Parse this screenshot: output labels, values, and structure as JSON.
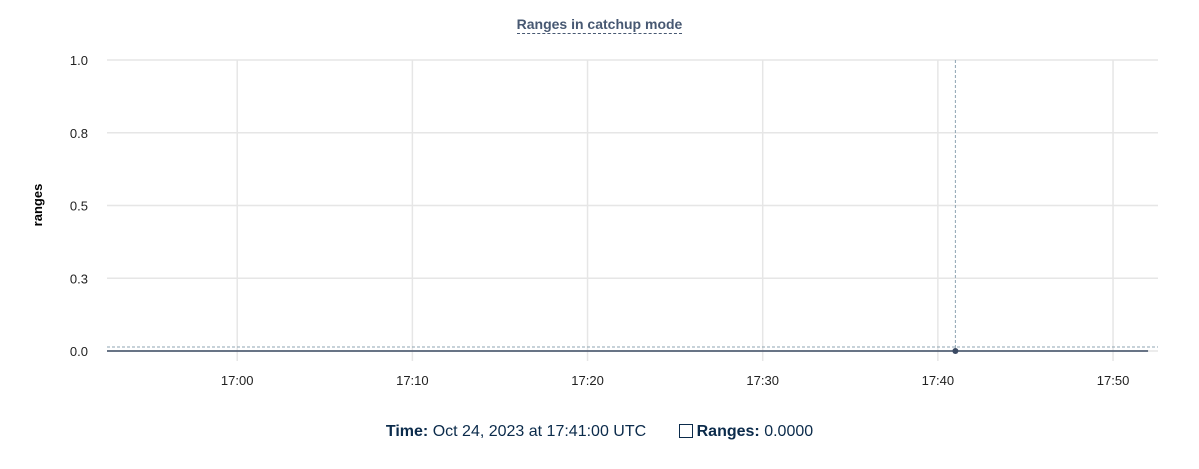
{
  "chart_data": {
    "type": "line",
    "title": "Ranges in catchup mode",
    "ylabel": "ranges",
    "xlabel": "",
    "ylim": [
      0,
      1.0
    ],
    "yticks": [
      "0.0",
      "0.3",
      "0.5",
      "0.8",
      "1.0"
    ],
    "ytick_values": [
      0,
      0.25,
      0.5,
      0.75,
      1.0
    ],
    "xticks": [
      "17:00",
      "17:10",
      "17:20",
      "17:30",
      "17:40",
      "17:50"
    ],
    "xlim": [
      "16:52:34",
      "17:52:34"
    ],
    "grid": true,
    "series": [
      {
        "name": "Ranges",
        "color": "#3b4a63",
        "x": [
          "16:52:34",
          "17:00",
          "17:10",
          "17:20",
          "17:30",
          "17:40",
          "17:41",
          "17:50",
          "17:52"
        ],
        "y": [
          0,
          0,
          0,
          0,
          0,
          0,
          0,
          0,
          0
        ]
      }
    ],
    "hover": {
      "x": "17:41",
      "y": 0
    }
  },
  "legend": {
    "time_label": "Time:",
    "time_value": "Oct 24, 2023 at 17:41:00 UTC",
    "series_label": "Ranges:",
    "series_value": "0.0000"
  }
}
